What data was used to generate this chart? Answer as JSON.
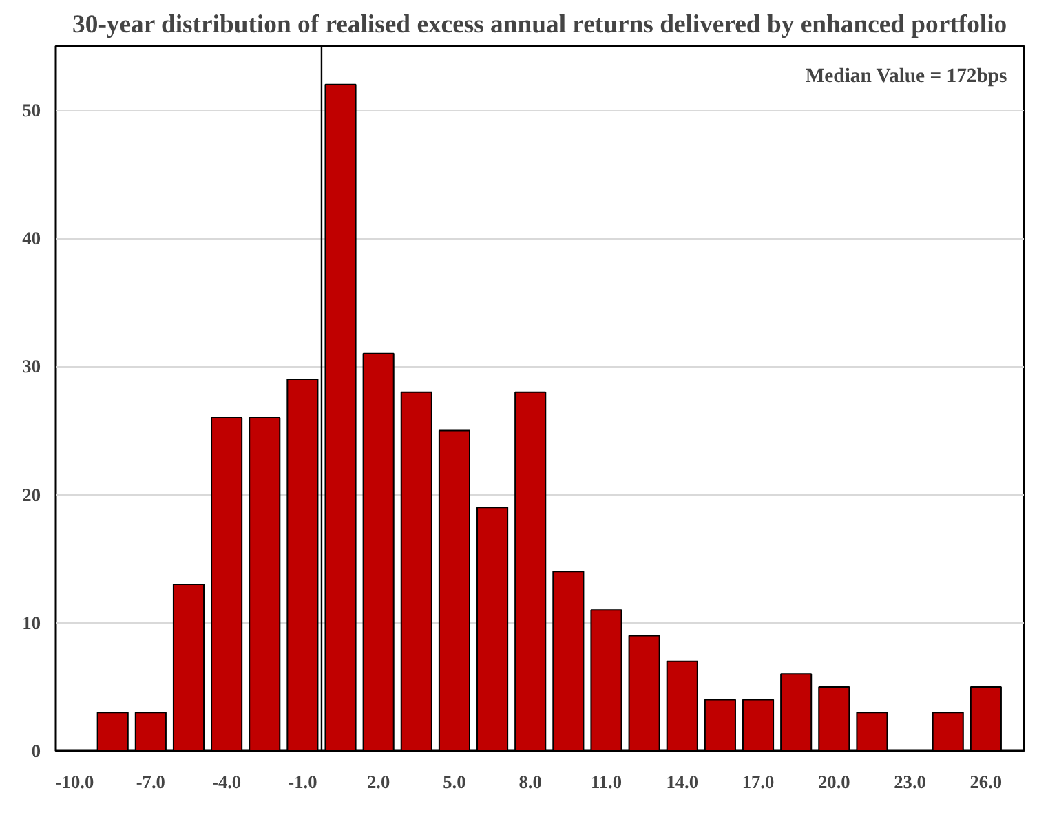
{
  "chart_data": {
    "type": "bar",
    "title": "30-year distribution of realised excess annual returns delivered by enhanced portfolio",
    "x": [
      -10.0,
      -8.5,
      -7.0,
      -5.5,
      -4.0,
      -2.5,
      -1.0,
      0.5,
      2.0,
      3.5,
      5.0,
      6.5,
      8.0,
      9.5,
      11.0,
      12.5,
      14.0,
      15.5,
      17.0,
      18.5,
      20.0,
      21.5,
      23.0,
      24.5,
      26.0
    ],
    "values": [
      0,
      3,
      3,
      13,
      26,
      26,
      29,
      52,
      31,
      28,
      25,
      19,
      28,
      14,
      11,
      9,
      7,
      4,
      4,
      6,
      5,
      3,
      0,
      3,
      5
    ],
    "color": "#c00000",
    "xlim": [
      -10.75,
      27.5
    ],
    "xticks": [
      {
        "value": -10,
        "label": "-10.0"
      },
      {
        "value": -7,
        "label": "-7.0"
      },
      {
        "value": -4,
        "label": "-4.0"
      },
      {
        "value": -1,
        "label": "-1.0"
      },
      {
        "value": 2,
        "label": "2.0"
      },
      {
        "value": 5,
        "label": "5.0"
      },
      {
        "value": 8,
        "label": "8.0"
      },
      {
        "value": 11,
        "label": "11.0"
      },
      {
        "value": 14,
        "label": "14.0"
      },
      {
        "value": 17,
        "label": "17.0"
      },
      {
        "value": 20,
        "label": "20.0"
      },
      {
        "value": 23,
        "label": "23.0"
      },
      {
        "value": 26,
        "label": "26.0"
      }
    ],
    "ylim": [
      0,
      55
    ],
    "yticks": [
      0,
      10,
      20,
      30,
      40,
      50
    ],
    "grid": "y",
    "ref_lines": [
      {
        "axis": "x",
        "value": -0.25,
        "color": "#000000"
      }
    ],
    "annotations": [
      "Median Value = 172bps"
    ]
  }
}
